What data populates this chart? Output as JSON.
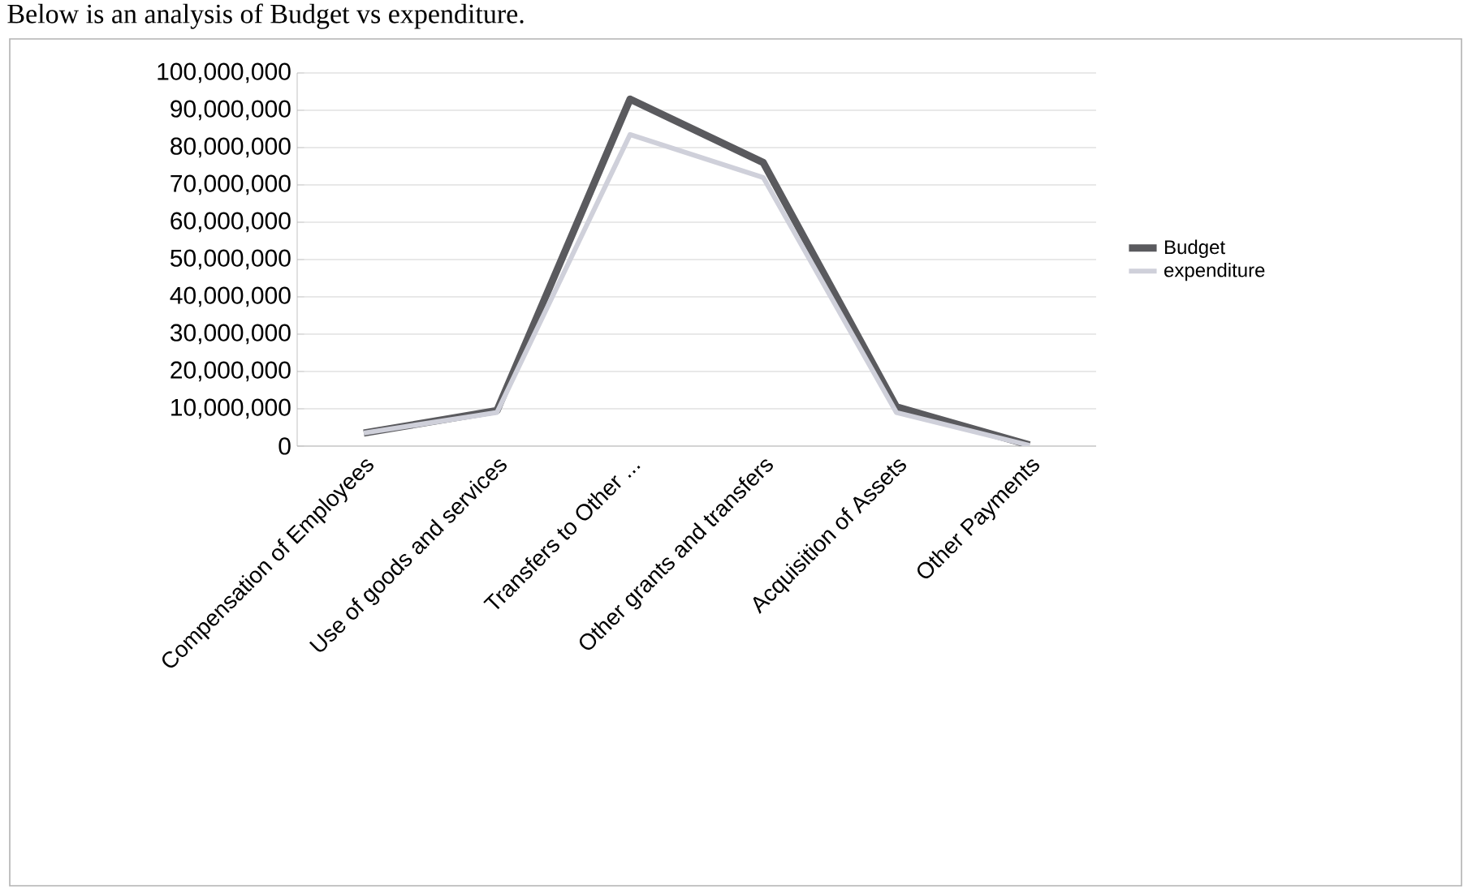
{
  "chart_data": {
    "type": "line",
    "annotations": [
      "Below is an analysis of Budget vs expenditure."
    ],
    "categories": [
      "Compensation of Employees",
      "Use of goods and services",
      "Transfers to Other ...",
      "Other grants and transfers",
      "Acquisition of Assets",
      "Other Payments"
    ],
    "series": [
      {
        "name": "Budget",
        "color": "#5a5a5e",
        "values": [
          3500000,
          9500000,
          93000000,
          76000000,
          10500000,
          300000
        ]
      },
      {
        "name": "expenditure",
        "color": "#cfd0da",
        "values": [
          3500000,
          9000000,
          83500000,
          72000000,
          9000000,
          200000
        ]
      }
    ],
    "ylim": [
      0,
      100000000
    ],
    "yticks": [
      {
        "value": 0,
        "label": "0"
      },
      {
        "value": 10000000,
        "label": "10,000,000"
      },
      {
        "value": 20000000,
        "label": "20,000,000"
      },
      {
        "value": 30000000,
        "label": "30,000,000"
      },
      {
        "value": 40000000,
        "label": "40,000,000"
      },
      {
        "value": 50000000,
        "label": "50,000,000"
      },
      {
        "value": 60000000,
        "label": "60,000,000"
      },
      {
        "value": 70000000,
        "label": "70,000,000"
      },
      {
        "value": 80000000,
        "label": "80,000,000"
      },
      {
        "value": 90000000,
        "label": "90,000,000"
      },
      {
        "value": 100000000,
        "label": "100,000,000"
      }
    ],
    "grid": "y",
    "legend": "right",
    "marker": "none",
    "line_style": "solid"
  }
}
